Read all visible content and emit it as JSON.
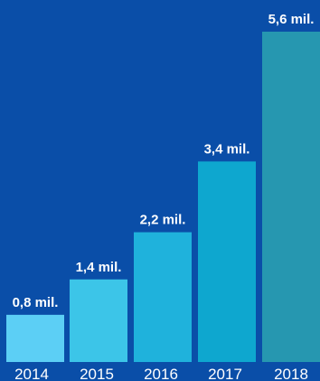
{
  "background_color": "#0a4ea8",
  "chart_data": {
    "type": "bar",
    "title": "",
    "xlabel": "",
    "ylabel": "",
    "categories": [
      "2014",
      "2015",
      "2016",
      "2017",
      "2018"
    ],
    "values": [
      0.8,
      1.4,
      2.2,
      3.4,
      5.6
    ],
    "unit": "mil.",
    "data_labels": [
      "0,8 mil.",
      "1,4 mil.",
      "2,2 mil.",
      "3,4 mil.",
      "5,6 mil."
    ],
    "bar_colors": [
      "#5ccff5",
      "#3cc5e8",
      "#1fb2dc",
      "#0ea7cf",
      "#2697b0"
    ],
    "ylim": [
      0,
      5.6
    ],
    "grid": false,
    "legend": "none"
  }
}
